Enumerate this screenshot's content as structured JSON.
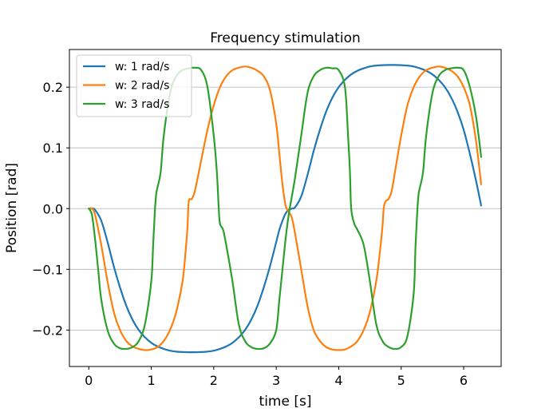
{
  "chart_data": {
    "type": "line",
    "title": "Frequency stimulation",
    "xlabel": "time [s]",
    "ylabel": "Position [rad]",
    "xlim": [
      -0.31,
      6.6
    ],
    "ylim": [
      -0.26,
      0.262
    ],
    "xticks": [
      0,
      1,
      2,
      3,
      4,
      5,
      6
    ],
    "xtick_labels": [
      "0",
      "1",
      "2",
      "3",
      "4",
      "5",
      "6"
    ],
    "yticks": [
      -0.2,
      -0.1,
      0.0,
      0.1,
      0.2
    ],
    "ytick_labels": [
      "−0.2",
      "−0.1",
      "0.0",
      "0.1",
      "0.2"
    ],
    "grid": "horizontal",
    "legend_position": "upper-left",
    "series": [
      {
        "name": "w: 1 rad/s",
        "color": "#1f77b4",
        "x": [
          0,
          0.05,
          0.1,
          0.2,
          0.3,
          0.4,
          0.5,
          0.6,
          0.7,
          0.8,
          0.9,
          1.0,
          1.1,
          1.2,
          1.3,
          1.4,
          1.5,
          1.6,
          1.7,
          1.8,
          1.9,
          2.0,
          2.1,
          2.2,
          2.3,
          2.4,
          2.5,
          2.6,
          2.7,
          2.8,
          2.9,
          3.0,
          3.05,
          3.1,
          3.15,
          3.2,
          3.25,
          3.3,
          3.4,
          3.5,
          3.6,
          3.7,
          3.8,
          3.9,
          4.0,
          4.1,
          4.2,
          4.3,
          4.4,
          4.5,
          4.6,
          4.7,
          4.8,
          4.9,
          5.0,
          5.1,
          5.2,
          5.3,
          5.4,
          5.5,
          5.6,
          5.7,
          5.8,
          5.9,
          6.0,
          6.1,
          6.2,
          6.28
        ],
        "y": [
          0.0,
          0.0,
          -0.002,
          -0.02,
          -0.055,
          -0.095,
          -0.13,
          -0.16,
          -0.183,
          -0.2,
          -0.212,
          -0.221,
          -0.227,
          -0.231,
          -0.234,
          -0.2355,
          -0.2362,
          -0.2365,
          -0.2365,
          -0.2362,
          -0.2355,
          -0.234,
          -0.231,
          -0.227,
          -0.221,
          -0.212,
          -0.2,
          -0.183,
          -0.16,
          -0.13,
          -0.095,
          -0.055,
          -0.035,
          -0.02,
          -0.008,
          -0.002,
          0.0,
          0.002,
          0.02,
          0.055,
          0.095,
          0.13,
          0.16,
          0.183,
          0.2,
          0.212,
          0.221,
          0.227,
          0.231,
          0.234,
          0.2355,
          0.2362,
          0.2365,
          0.2365,
          0.2362,
          0.2355,
          0.234,
          0.231,
          0.227,
          0.221,
          0.212,
          0.2,
          0.183,
          0.16,
          0.13,
          0.09,
          0.045,
          0.005
        ]
      },
      {
        "name": "w: 2 rad/s",
        "color": "#ff7f0e",
        "x": [
          0,
          0.05,
          0.1,
          0.2,
          0.3,
          0.4,
          0.5,
          0.6,
          0.7,
          0.8,
          0.9,
          1.0,
          1.1,
          1.2,
          1.3,
          1.4,
          1.5,
          1.55,
          1.58,
          1.6,
          1.65,
          1.7,
          1.8,
          1.9,
          2.0,
          2.1,
          2.2,
          2.3,
          2.4,
          2.5,
          2.6,
          2.7,
          2.8,
          2.9,
          3.0,
          3.05,
          3.1,
          3.15,
          3.2,
          3.25,
          3.3,
          3.4,
          3.5,
          3.6,
          3.7,
          3.8,
          3.9,
          4.0,
          4.1,
          4.2,
          4.3,
          4.4,
          4.5,
          4.6,
          4.65,
          4.7,
          4.72,
          4.75,
          4.8,
          4.85,
          4.9,
          5.0,
          5.1,
          5.2,
          5.3,
          5.4,
          5.5,
          5.6,
          5.7,
          5.8,
          5.9,
          6.0,
          6.1,
          6.2,
          6.28
        ],
        "y": [
          0.0,
          0.0,
          -0.01,
          -0.06,
          -0.12,
          -0.17,
          -0.2,
          -0.218,
          -0.227,
          -0.231,
          -0.233,
          -0.232,
          -0.228,
          -0.218,
          -0.2,
          -0.17,
          -0.12,
          -0.07,
          -0.03,
          0.012,
          0.016,
          0.03,
          0.08,
          0.13,
          0.17,
          0.2,
          0.218,
          0.228,
          0.232,
          0.234,
          0.232,
          0.227,
          0.218,
          0.195,
          0.14,
          0.09,
          0.04,
          0.005,
          -0.005,
          -0.015,
          -0.04,
          -0.1,
          -0.16,
          -0.2,
          -0.218,
          -0.228,
          -0.232,
          -0.233,
          -0.232,
          -0.227,
          -0.218,
          -0.2,
          -0.17,
          -0.12,
          -0.08,
          -0.03,
          0.0,
          0.012,
          0.016,
          0.03,
          0.06,
          0.12,
          0.17,
          0.2,
          0.218,
          0.228,
          0.232,
          0.234,
          0.232,
          0.227,
          0.218,
          0.2,
          0.17,
          0.11,
          0.04
        ]
      },
      {
        "name": "w: 3 rad/s",
        "color": "#2ca02c",
        "x": [
          0,
          0.05,
          0.1,
          0.15,
          0.2,
          0.3,
          0.4,
          0.5,
          0.6,
          0.7,
          0.8,
          0.9,
          1.0,
          1.03,
          1.06,
          1.08,
          1.1,
          1.15,
          1.2,
          1.3,
          1.4,
          1.5,
          1.6,
          1.7,
          1.8,
          1.9,
          2.0,
          2.05,
          2.08,
          2.1,
          2.15,
          2.2,
          2.3,
          2.4,
          2.5,
          2.6,
          2.7,
          2.8,
          2.9,
          3.0,
          3.05,
          3.1,
          3.15,
          3.2,
          3.25,
          3.3,
          3.4,
          3.5,
          3.6,
          3.7,
          3.8,
          3.9,
          4.0,
          4.1,
          4.15,
          4.18,
          4.2,
          4.25,
          4.3,
          4.4,
          4.5,
          4.6,
          4.7,
          4.8,
          4.9,
          5.0,
          5.1,
          5.2,
          5.23,
          5.26,
          5.28,
          5.3,
          5.35,
          5.4,
          5.5,
          5.6,
          5.7,
          5.8,
          5.9,
          6.0,
          6.1,
          6.2,
          6.28
        ],
        "y": [
          0.0,
          -0.01,
          -0.05,
          -0.1,
          -0.15,
          -0.2,
          -0.222,
          -0.23,
          -0.231,
          -0.228,
          -0.218,
          -0.19,
          -0.12,
          -0.06,
          0.0,
          0.025,
          0.035,
          0.06,
          0.12,
          0.19,
          0.218,
          0.228,
          0.231,
          0.232,
          0.228,
          0.2,
          0.12,
          0.06,
          0.0,
          -0.025,
          -0.035,
          -0.06,
          -0.12,
          -0.19,
          -0.218,
          -0.228,
          -0.231,
          -0.23,
          -0.222,
          -0.2,
          -0.15,
          -0.1,
          -0.05,
          -0.01,
          0.02,
          0.05,
          0.12,
          0.19,
          0.218,
          0.228,
          0.232,
          0.231,
          0.228,
          0.2,
          0.12,
          0.06,
          0.0,
          -0.025,
          -0.035,
          -0.06,
          -0.12,
          -0.19,
          -0.218,
          -0.228,
          -0.231,
          -0.228,
          -0.21,
          -0.14,
          -0.06,
          0.0,
          0.025,
          0.035,
          0.06,
          0.12,
          0.19,
          0.218,
          0.228,
          0.231,
          0.232,
          0.228,
          0.2,
          0.15,
          0.085
        ]
      }
    ]
  }
}
